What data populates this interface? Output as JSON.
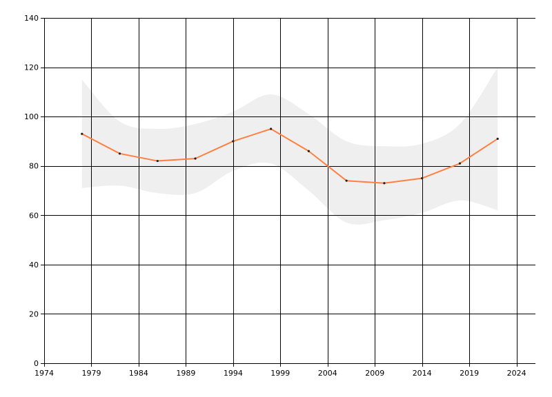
{
  "colors": {
    "background": "#ffffff",
    "grid": "#000000",
    "line": "#ff7f3f",
    "band": "#efefef",
    "marker": "#222222"
  },
  "chart_data": {
    "type": "line",
    "grid": true,
    "legend": "none",
    "xlim": [
      1974,
      2026
    ],
    "ylim": [
      0,
      140
    ],
    "x_ticks": [
      1974,
      1979,
      1984,
      1989,
      1994,
      1999,
      2004,
      2009,
      2014,
      2019,
      2024
    ],
    "y_ticks": [
      0,
      20,
      40,
      60,
      80,
      100,
      120,
      140
    ],
    "x_tick_labels": [
      "1974",
      "1979",
      "1984",
      "1989",
      "1994",
      "1999",
      "2004",
      "2009",
      "2014",
      "2019",
      "2024"
    ],
    "y_tick_labels": [
      "0",
      "20",
      "40",
      "60",
      "80",
      "100",
      "120",
      "140"
    ],
    "series": [
      {
        "x": [
          1978,
          1982,
          1986,
          1990,
          1994,
          1998,
          2002,
          2006,
          2010,
          2014,
          2018,
          2022
        ],
        "values": [
          93,
          85,
          82,
          83,
          90,
          95,
          86,
          74,
          73,
          75,
          81,
          91
        ]
      }
    ],
    "band": {
      "x": [
        1978,
        1982,
        1986,
        1990,
        1994,
        1998,
        2002,
        2006,
        2010,
        2014,
        2018,
        2022
      ],
      "upper": [
        115,
        98,
        95,
        97,
        102,
        109,
        101,
        90,
        88,
        89,
        97,
        120
      ],
      "lower": [
        71,
        72,
        69,
        69,
        78,
        81,
        70,
        57,
        58,
        61,
        66,
        62
      ]
    }
  }
}
